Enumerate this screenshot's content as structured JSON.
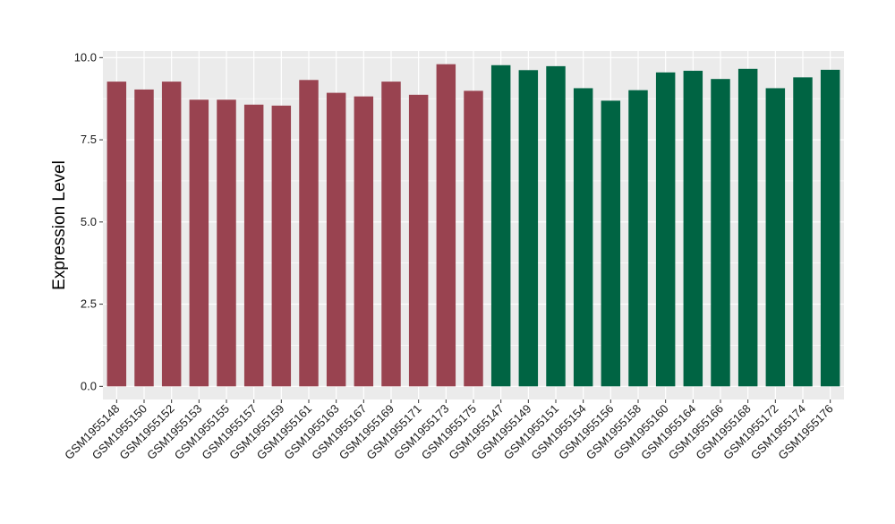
{
  "chart_data": {
    "type": "bar",
    "title": "",
    "xlabel": "",
    "ylabel": "Expression Level",
    "ylim": [
      -0.4,
      10.2
    ],
    "yticks": [
      0.0,
      2.5,
      5.0,
      7.5,
      10.0
    ],
    "ytick_labels": [
      "0.0",
      "2.5",
      "5.0",
      "7.5",
      "10.0"
    ],
    "grid": true,
    "legend": "none",
    "panel_background": "#ebebeb",
    "grid_color": "#ffffff",
    "categories": [
      "GSM1955148",
      "GSM1955150",
      "GSM1955152",
      "GSM1955153",
      "GSM1955155",
      "GSM1955157",
      "GSM1955159",
      "GSM1955161",
      "GSM1955163",
      "GSM1955167",
      "GSM1955169",
      "GSM1955171",
      "GSM1955173",
      "GSM1955175",
      "GSM1955147",
      "GSM1955149",
      "GSM1955151",
      "GSM1955154",
      "GSM1955156",
      "GSM1955158",
      "GSM1955160",
      "GSM1955164",
      "GSM1955166",
      "GSM1955168",
      "GSM1955172",
      "GSM1955174",
      "GSM1955176"
    ],
    "values": [
      9.27,
      9.03,
      9.27,
      8.72,
      8.72,
      8.57,
      8.54,
      9.32,
      8.93,
      8.82,
      9.27,
      8.87,
      9.8,
      8.99,
      9.77,
      9.62,
      9.74,
      9.07,
      8.69,
      9.01,
      9.55,
      9.6,
      9.35,
      9.66,
      9.07,
      9.4,
      9.63
    ],
    "bar_colors": [
      "#994350",
      "#994350",
      "#994350",
      "#994350",
      "#994350",
      "#994350",
      "#994350",
      "#994350",
      "#994350",
      "#994350",
      "#994350",
      "#994350",
      "#994350",
      "#994350",
      "#006443",
      "#006443",
      "#006443",
      "#006443",
      "#006443",
      "#006443",
      "#006443",
      "#006443",
      "#006443",
      "#006443",
      "#006443",
      "#006443",
      "#006443"
    ]
  }
}
